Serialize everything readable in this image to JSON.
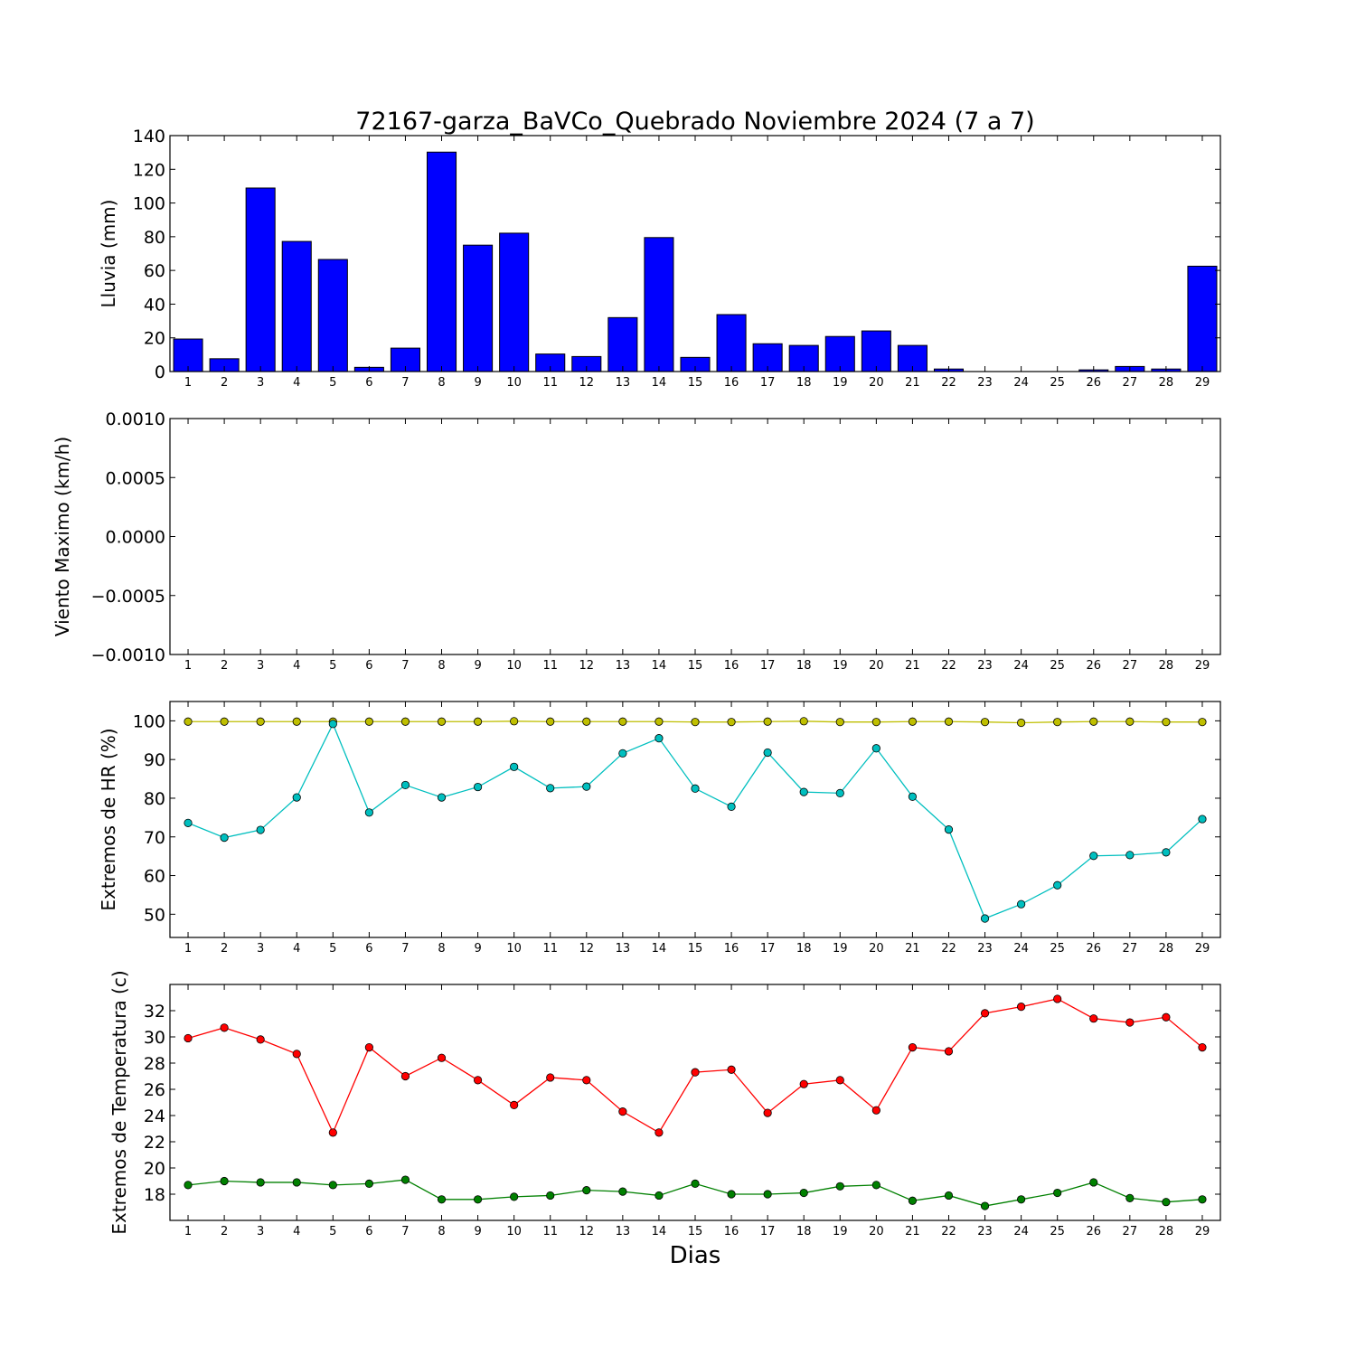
{
  "title": "72167-garza_BaVCo_Quebrado Noviembre 2024  (7 a 7)",
  "xlabel": "Dias",
  "chart_data": [
    {
      "type": "bar",
      "ylabel": "Lluvia (mm)",
      "ylim": [
        0,
        140
      ],
      "yticks": [
        "0",
        "20",
        "40",
        "60",
        "80",
        "100",
        "120",
        "140"
      ],
      "categories": [
        "1",
        "2",
        "3",
        "4",
        "5",
        "6",
        "7",
        "8",
        "9",
        "10",
        "11",
        "12",
        "13",
        "14",
        "15",
        "16",
        "17",
        "18",
        "19",
        "20",
        "21",
        "22",
        "23",
        "24",
        "25",
        "26",
        "27",
        "28",
        "29"
      ],
      "series": [
        {
          "color": "#0000ff",
          "values": [
            19.3,
            7.6,
            108.9,
            77.2,
            66.5,
            2.5,
            13.9,
            130.2,
            75.0,
            82.1,
            10.4,
            8.9,
            32.0,
            79.5,
            8.4,
            33.8,
            16.5,
            15.5,
            20.8,
            24.1,
            15.5,
            1.5,
            0,
            0,
            0,
            1.0,
            3.0,
            1.5,
            62.5
          ]
        }
      ]
    },
    {
      "type": "line",
      "ylabel": "Viento Maximo (km/h)",
      "ylim": [
        -0.001,
        0.001
      ],
      "yticks": [
        "0.0010",
        "0.0005",
        "0.0000",
        "−0.0005",
        "−0.0010"
      ],
      "categories": [
        "1",
        "2",
        "3",
        "4",
        "5",
        "6",
        "7",
        "8",
        "9",
        "10",
        "11",
        "12",
        "13",
        "14",
        "15",
        "16",
        "17",
        "18",
        "19",
        "20",
        "21",
        "22",
        "23",
        "24",
        "25",
        "26",
        "27",
        "28",
        "29"
      ],
      "series": []
    },
    {
      "type": "line",
      "ylabel": "Extremos de HR (%)",
      "ylim": [
        44,
        105
      ],
      "yticks": [
        "50",
        "60",
        "70",
        "80",
        "90",
        "100"
      ],
      "categories": [
        "1",
        "2",
        "3",
        "4",
        "5",
        "6",
        "7",
        "8",
        "9",
        "10",
        "11",
        "12",
        "13",
        "14",
        "15",
        "16",
        "17",
        "18",
        "19",
        "20",
        "21",
        "22",
        "23",
        "24",
        "25",
        "26",
        "27",
        "28",
        "29"
      ],
      "series": [
        {
          "color": "#bfbf00",
          "values": [
            99.8,
            99.8,
            99.8,
            99.8,
            99.8,
            99.8,
            99.8,
            99.8,
            99.8,
            99.9,
            99.8,
            99.8,
            99.8,
            99.8,
            99.7,
            99.7,
            99.8,
            99.9,
            99.7,
            99.7,
            99.8,
            99.8,
            99.7,
            99.5,
            99.7,
            99.8,
            99.8,
            99.7,
            99.7
          ]
        },
        {
          "color": "#00bfbf",
          "values": [
            73.6,
            69.8,
            71.8,
            80.2,
            99.2,
            76.3,
            83.4,
            80.2,
            82.9,
            88.1,
            82.6,
            83.0,
            91.6,
            95.5,
            82.5,
            77.8,
            91.8,
            81.6,
            81.3,
            92.9,
            80.4,
            71.9,
            48.9,
            52.6,
            57.5,
            65.1,
            65.3,
            66.0,
            74.6
          ]
        }
      ]
    },
    {
      "type": "line",
      "ylabel": "Extremos de Temperatura (c)",
      "ylim": [
        16,
        34
      ],
      "yticks": [
        "18",
        "20",
        "22",
        "24",
        "26",
        "28",
        "30",
        "32"
      ],
      "categories": [
        "1",
        "2",
        "3",
        "4",
        "5",
        "6",
        "7",
        "8",
        "9",
        "10",
        "11",
        "12",
        "13",
        "14",
        "15",
        "16",
        "17",
        "18",
        "19",
        "20",
        "21",
        "22",
        "23",
        "24",
        "25",
        "26",
        "27",
        "28",
        "29"
      ],
      "series": [
        {
          "color": "#ff0000",
          "values": [
            29.9,
            30.7,
            29.8,
            28.7,
            22.7,
            29.2,
            27.0,
            28.4,
            26.7,
            24.8,
            26.9,
            26.7,
            24.3,
            22.7,
            27.3,
            27.5,
            24.2,
            26.4,
            26.7,
            24.4,
            29.2,
            28.9,
            31.8,
            32.3,
            32.9,
            31.4,
            31.1,
            31.5,
            29.2
          ]
        },
        {
          "color": "#008000",
          "values": [
            18.7,
            19.0,
            18.9,
            18.9,
            18.7,
            18.8,
            19.1,
            17.6,
            17.6,
            17.8,
            17.9,
            18.3,
            18.2,
            17.9,
            18.8,
            18.0,
            18.0,
            18.1,
            18.6,
            18.7,
            17.5,
            17.9,
            17.1,
            17.6,
            18.1,
            18.9,
            17.7,
            17.4,
            17.6
          ]
        }
      ]
    }
  ]
}
